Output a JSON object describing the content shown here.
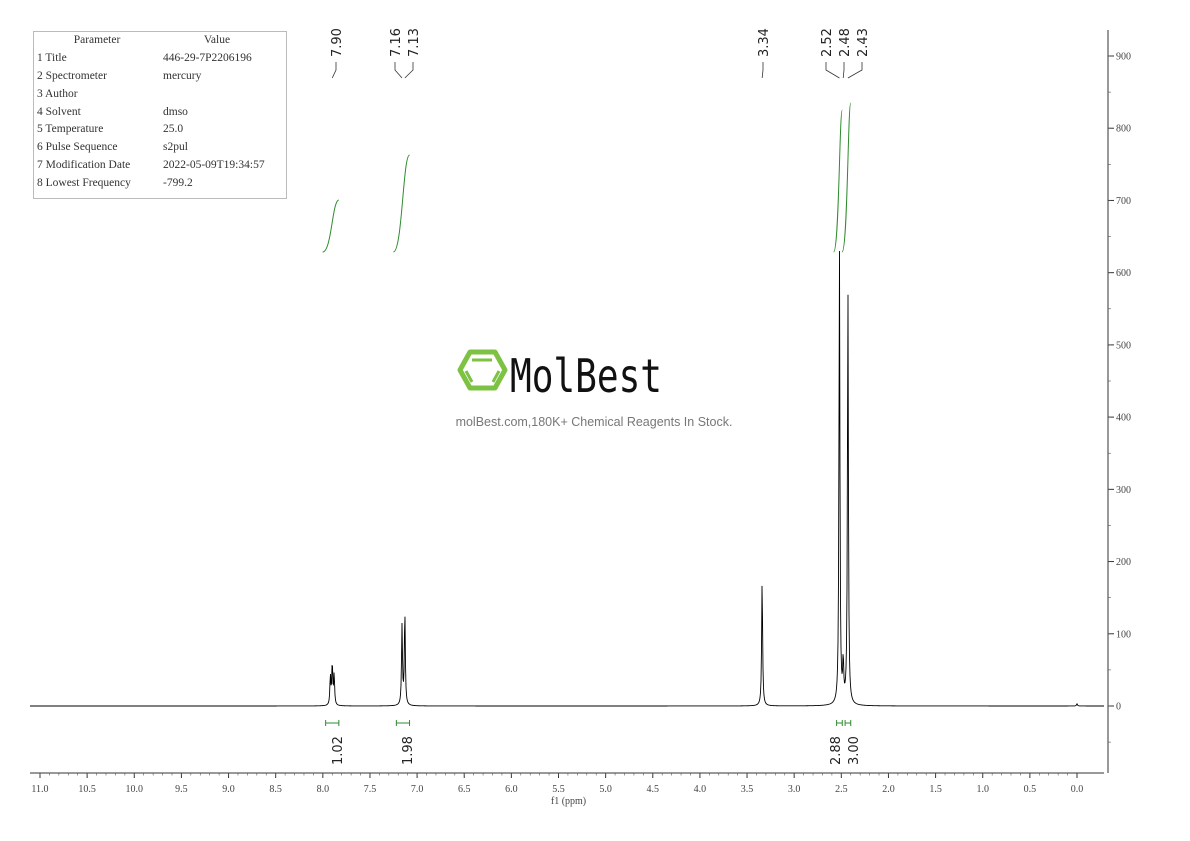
{
  "parameters": {
    "header": {
      "param": "Parameter",
      "value": "Value"
    },
    "rows": [
      {
        "k": "1 Title",
        "v": "446-29-7P2206196"
      },
      {
        "k": "2 Spectrometer",
        "v": "mercury"
      },
      {
        "k": "3 Author",
        "v": ""
      },
      {
        "k": "4 Solvent",
        "v": "dmso"
      },
      {
        "k": "5 Temperature",
        "v": "25.0"
      },
      {
        "k": "6 Pulse Sequence",
        "v": "s2pul"
      },
      {
        "k": "7 Modification Date",
        "v": "2022-05-09T19:34:57"
      },
      {
        "k": "8 Lowest Frequency",
        "v": "-799.2"
      }
    ]
  },
  "watermark": {
    "brand": "MolBest",
    "tagline": "molBest.com,180K+ Chemical Reagents In Stock.",
    "color": "#7dc243"
  },
  "chart_data": {
    "type": "line",
    "xlabel": "f1 (ppm)",
    "xlim": [
      11.0,
      0.0
    ],
    "ylim": [
      -80,
      900
    ],
    "x_ticks": [
      "11.0",
      "10.5",
      "10.0",
      "9.5",
      "9.0",
      "8.5",
      "8.0",
      "7.5",
      "7.0",
      "6.5",
      "6.0",
      "5.5",
      "5.0",
      "4.5",
      "4.0",
      "3.5",
      "3.0",
      "2.5",
      "2.0",
      "1.5",
      "1.0",
      "0.5",
      "0.0"
    ],
    "y_ticks": [
      "0",
      "100",
      "200",
      "300",
      "400",
      "500",
      "600",
      "700",
      "800",
      "900"
    ],
    "peaks": [
      {
        "ppm": 7.92,
        "height": 40
      },
      {
        "ppm": 7.9,
        "height": 58
      },
      {
        "ppm": 7.88,
        "height": 42
      },
      {
        "ppm": 7.16,
        "height": 110
      },
      {
        "ppm": 7.13,
        "height": 130
      },
      {
        "ppm": 3.34,
        "height": 175
      },
      {
        "ppm": 2.52,
        "height": 635
      },
      {
        "ppm": 2.48,
        "height": 55
      },
      {
        "ppm": 2.43,
        "height": 578
      },
      {
        "ppm": 0.0,
        "height": 3
      }
    ],
    "peak_labels": [
      "7.90",
      "7.16",
      "7.13",
      "3.34",
      "2.52",
      "2.48",
      "2.43"
    ],
    "integrals": [
      {
        "from": 7.97,
        "to": 7.83,
        "value": "1.02"
      },
      {
        "from": 7.22,
        "to": 7.08,
        "value": "1.98"
      },
      {
        "from": 2.55,
        "to": 2.49,
        "value": "2.88"
      },
      {
        "from": 2.46,
        "to": 2.4,
        "value": "3.00"
      }
    ],
    "spectrum_color": "#000000",
    "integral_color": "#2e8b2e"
  }
}
